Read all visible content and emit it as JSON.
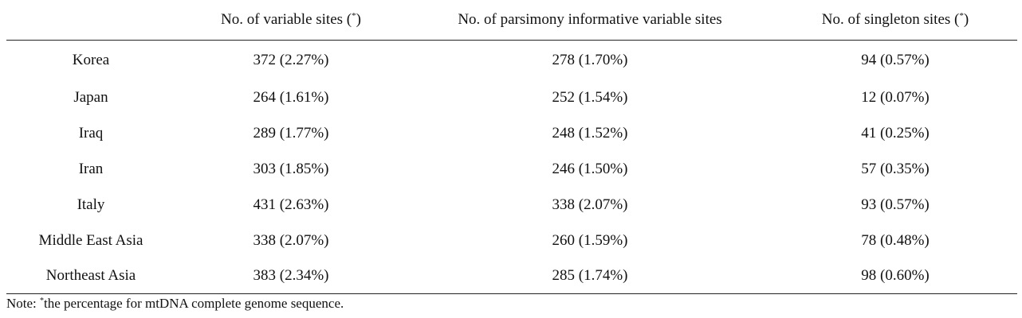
{
  "table": {
    "headers": {
      "region": "",
      "variable_sites": "No. of variable sites (",
      "variable_sites_mark": "*",
      "variable_sites_close": ")",
      "parsimony_sites": "No. of parsimony informative variable sites",
      "singleton_sites": "No. of singleton sites (",
      "singleton_sites_mark": "*",
      "singleton_sites_close": ")"
    },
    "rows": [
      {
        "region": "Korea",
        "variable": "372 (2.27%)",
        "parsimony": "278 (1.70%)",
        "singleton": "94 (0.57%)"
      },
      {
        "region": "Japan",
        "variable": "264 (1.61%)",
        "parsimony": "252 (1.54%)",
        "singleton": "12 (0.07%)"
      },
      {
        "region": "Iraq",
        "variable": "289 (1.77%)",
        "parsimony": "248 (1.52%)",
        "singleton": "41 (0.25%)"
      },
      {
        "region": "Iran",
        "variable": "303 (1.85%)",
        "parsimony": "246 (1.50%)",
        "singleton": "57 (0.35%)"
      },
      {
        "region": "Italy",
        "variable": "431 (2.63%)",
        "parsimony": "338 (2.07%)",
        "singleton": "93 (0.57%)"
      },
      {
        "region": "Middle East Asia",
        "variable": "338 (2.07%)",
        "parsimony": "260 (1.59%)",
        "singleton": "78 (0.48%)"
      },
      {
        "region": "Northeast Asia",
        "variable": "383 (2.34%)",
        "parsimony": "285 (1.74%)",
        "singleton": "98 (0.60%)"
      }
    ]
  },
  "note": {
    "prefix": "Note: ",
    "mark": "*",
    "text": "the percentage for mtDNA complete genome sequence."
  }
}
